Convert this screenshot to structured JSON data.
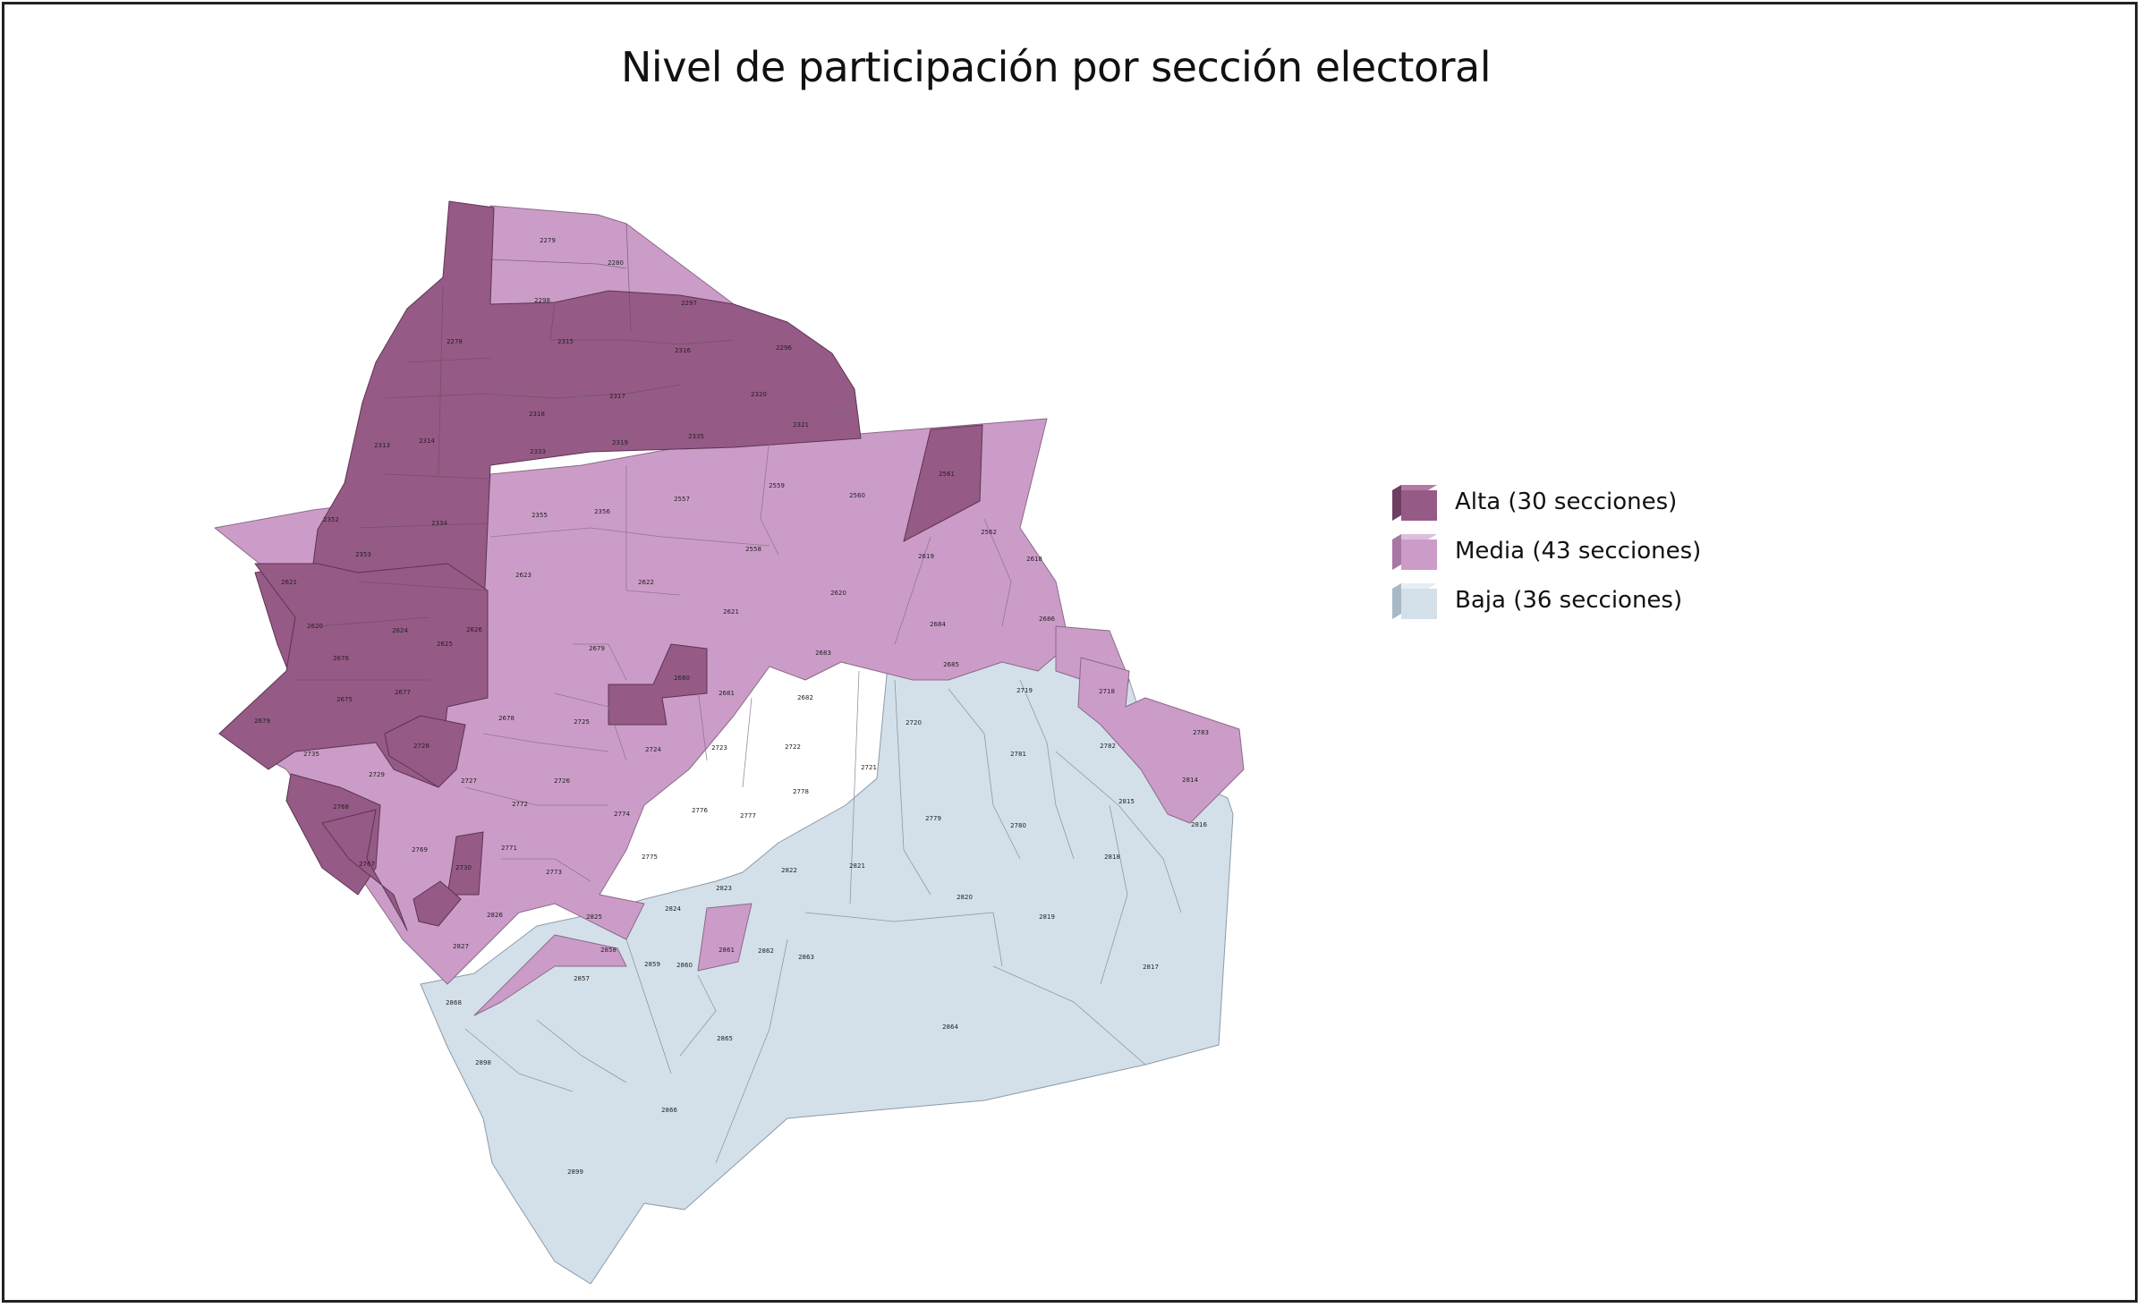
{
  "title": "Nivel de participación por sección electoral",
  "legend": [
    {
      "key": "alta",
      "label": "Alta (30 secciones)",
      "color": "#965a86",
      "side": "#6f3e62",
      "top": "#b07aa3"
    },
    {
      "key": "media",
      "label": "Media (43 secciones)",
      "color": "#cc9cc9",
      "side": "#a877a4",
      "top": "#ddbfdb"
    },
    {
      "key": "baja",
      "label": "Baja (36 secciones)",
      "color": "#d3e0ea",
      "side": "#a7b9c7",
      "top": "#e6eef4"
    }
  ],
  "sections": {
    "alta": [
      "2278",
      "2315",
      "2316",
      "2296",
      "2317",
      "2318",
      "2320",
      "2321",
      "2313",
      "2314",
      "2333",
      "2334",
      "2335",
      "2319",
      "2353",
      "2621",
      "2624",
      "2625",
      "2626",
      "2620",
      "2676",
      "2675",
      "2677",
      "2679",
      "2680",
      "2561",
      "2728",
      "2768",
      "2767",
      "2730"
    ],
    "media": [
      "2279",
      "2280",
      "2298",
      "2297",
      "2352",
      "2355",
      "2356",
      "2557",
      "2559",
      "2560",
      "2558",
      "2623",
      "2622",
      "2621b",
      "2562",
      "2618",
      "2619",
      "2678",
      "2725",
      "2724",
      "2723",
      "2681",
      "2682",
      "2683",
      "2684",
      "2686",
      "2735",
      "2729",
      "2727",
      "2772",
      "2771",
      "2773",
      "2769",
      "2826",
      "2827",
      "2824",
      "2823",
      "2858",
      "2861",
      "2718",
      "2783",
      "2814",
      "2684b"
    ],
    "baja": [
      "2620b",
      "2685",
      "2719",
      "2720",
      "2721",
      "2722",
      "2726",
      "2774",
      "2775",
      "2776",
      "2777",
      "2778",
      "2779",
      "2780",
      "2781",
      "2782",
      "2815",
      "2816",
      "2817",
      "2818",
      "2819",
      "2820",
      "2821",
      "2822",
      "2825",
      "2857",
      "2859",
      "2860",
      "2862",
      "2863",
      "2864",
      "2865",
      "2866",
      "2868",
      "2898",
      "2899"
    ]
  }
}
